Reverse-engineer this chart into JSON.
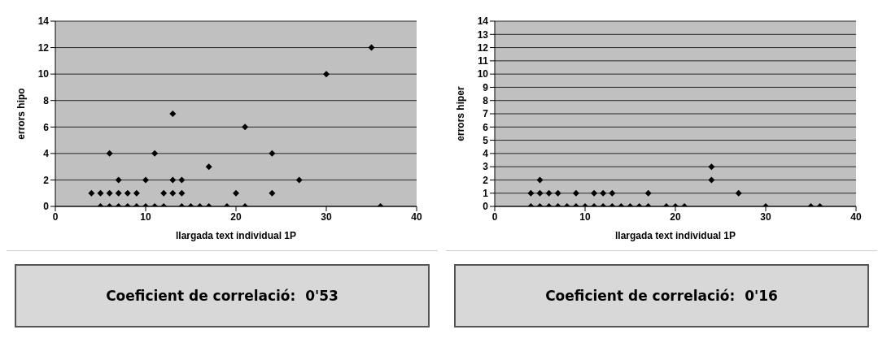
{
  "chart_data": [
    {
      "type": "scatter",
      "xlabel": "llargada text individual 1P",
      "ylabel": "errors hipo",
      "xlim": [
        0,
        40
      ],
      "xticks": [
        0,
        10,
        20,
        30,
        40
      ],
      "ylim": [
        0,
        14
      ],
      "yticks": [
        0,
        2,
        4,
        6,
        8,
        10,
        12,
        14
      ],
      "grid": "y",
      "marker": "diamond",
      "legend": false,
      "series": [
        {
          "color": "#000000",
          "x": [
            5,
            6,
            7,
            8,
            9,
            10,
            11,
            12,
            14,
            15,
            16,
            17,
            19,
            21,
            36,
            4,
            5,
            6,
            7,
            8,
            9,
            12,
            13,
            14,
            20,
            24,
            7,
            10,
            13,
            14,
            27,
            17,
            6,
            11,
            24,
            21,
            13,
            30,
            35
          ],
          "values": [
            0,
            0,
            0,
            0,
            0,
            0,
            0,
            0,
            0,
            0,
            0,
            0,
            0,
            0,
            0,
            1,
            1,
            1,
            1,
            1,
            1,
            1,
            1,
            1,
            1,
            1,
            2,
            2,
            2,
            2,
            2,
            3,
            4,
            4,
            4,
            6,
            7,
            10,
            12
          ]
        }
      ],
      "annotations": [
        "Coeficient de correlació:  0'53"
      ]
    },
    {
      "type": "scatter",
      "xlabel": "llargada text individual 1P",
      "ylabel": "errors hiper",
      "xlim": [
        0,
        40
      ],
      "xticks": [
        0,
        10,
        20,
        30,
        40
      ],
      "ylim": [
        0,
        14
      ],
      "yticks": [
        0,
        1,
        2,
        3,
        4,
        5,
        6,
        7,
        8,
        9,
        10,
        11,
        12,
        13,
        14
      ],
      "grid": "y",
      "marker": "diamond",
      "legend": false,
      "series": [
        {
          "color": "#000000",
          "x": [
            4,
            5,
            6,
            7,
            8,
            9,
            10,
            11,
            12,
            13,
            14,
            15,
            16,
            17,
            19,
            20,
            21,
            30,
            35,
            36,
            4,
            5,
            6,
            7,
            9,
            11,
            12,
            13,
            17,
            27,
            5,
            24,
            24
          ],
          "values": [
            0,
            0,
            0,
            0,
            0,
            0,
            0,
            0,
            0,
            0,
            0,
            0,
            0,
            0,
            0,
            0,
            0,
            0,
            0,
            0,
            1,
            1,
            1,
            1,
            1,
            1,
            1,
            1,
            1,
            1,
            2,
            2,
            3
          ]
        }
      ],
      "annotations": [
        "Coeficient de correlació:  0'16"
      ]
    }
  ]
}
